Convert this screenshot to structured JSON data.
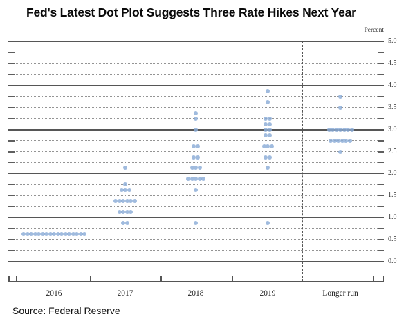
{
  "header": {
    "title": "Fed's Latest Dot Plot Suggests Three Rate Hikes Next Year"
  },
  "footer": {
    "source": "Source: Federal Reserve"
  },
  "chart_data": {
    "type": "scatter",
    "title": "Fed's Latest Dot Plot Suggests Three Rate Hikes Next Year",
    "ylabel": "Percent",
    "xlabel": "",
    "ylim": [
      0,
      5
    ],
    "grid_step": 0.25,
    "grid": "solid lines at integers, dotted lines at quarter points with end ticks",
    "legend_position": "none",
    "dot_color": "#8bacd7",
    "ytick_labels": [
      "5.0",
      "4.5",
      "4.0",
      "3.5",
      "3.0",
      "2.5",
      "2.0",
      "1.5",
      "1.0",
      "0.5",
      "0.0"
    ],
    "categories": [
      "2016",
      "2017",
      "2018",
      "2019",
      "Longer run"
    ],
    "separator_note": "dashed vertical line between 2019 and Longer run",
    "series": [
      {
        "name": "2016",
        "dots": [
          {
            "rate": 0.625,
            "count": 17
          }
        ]
      },
      {
        "name": "2017",
        "dots": [
          {
            "rate": 2.125,
            "count": 1
          },
          {
            "rate": 1.75,
            "count": 1
          },
          {
            "rate": 1.625,
            "count": 3
          },
          {
            "rate": 1.375,
            "count": 6
          },
          {
            "rate": 1.125,
            "count": 4
          },
          {
            "rate": 0.875,
            "count": 2
          }
        ]
      },
      {
        "name": "2018",
        "dots": [
          {
            "rate": 3.375,
            "count": 1
          },
          {
            "rate": 3.25,
            "count": 1
          },
          {
            "rate": 3.0,
            "count": 1
          },
          {
            "rate": 2.625,
            "count": 2
          },
          {
            "rate": 2.375,
            "count": 2
          },
          {
            "rate": 2.125,
            "count": 3
          },
          {
            "rate": 1.875,
            "count": 5
          },
          {
            "rate": 1.625,
            "count": 1
          },
          {
            "rate": 0.875,
            "count": 1
          }
        ]
      },
      {
        "name": "2019",
        "dots": [
          {
            "rate": 3.875,
            "count": 1
          },
          {
            "rate": 3.625,
            "count": 1
          },
          {
            "rate": 3.25,
            "count": 2
          },
          {
            "rate": 3.125,
            "count": 2
          },
          {
            "rate": 3.0,
            "count": 2
          },
          {
            "rate": 2.875,
            "count": 2
          },
          {
            "rate": 2.625,
            "count": 3
          },
          {
            "rate": 2.375,
            "count": 2
          },
          {
            "rate": 2.125,
            "count": 1
          },
          {
            "rate": 0.875,
            "count": 1
          }
        ]
      },
      {
        "name": "Longer run",
        "dots": [
          {
            "rate": 3.75,
            "count": 1
          },
          {
            "rate": 3.5,
            "count": 1
          },
          {
            "rate": 3.0,
            "count": 7
          },
          {
            "rate": 2.75,
            "count": 6
          },
          {
            "rate": 2.5,
            "count": 1
          }
        ]
      }
    ]
  }
}
